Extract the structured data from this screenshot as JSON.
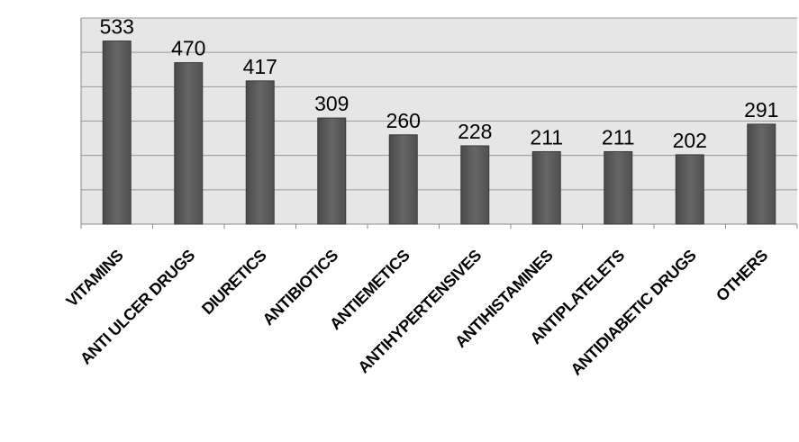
{
  "chart_data": {
    "type": "bar",
    "categories": [
      "VITAMINS",
      "ANTI ULCER DRUGS",
      "DIURETICS",
      "ANTIBIOTICS",
      "ANTIEMETICS",
      "ANTIHYPERTENSIVES",
      "ANTIHISTAMINES",
      "ANTIPLATELETS",
      "ANTIDIABETIC DRUGS",
      "OTHERS"
    ],
    "values": [
      533,
      470,
      417,
      309,
      260,
      228,
      211,
      211,
      202,
      291
    ],
    "ylim": [
      0,
      600
    ],
    "grid": true,
    "y_tick_labels_shown": false,
    "colors": {
      "bar": "#5f5f5f",
      "bar_edge": "#3a3a3a",
      "plot_bg": "#e6e6e6",
      "grid": "#999999"
    }
  }
}
